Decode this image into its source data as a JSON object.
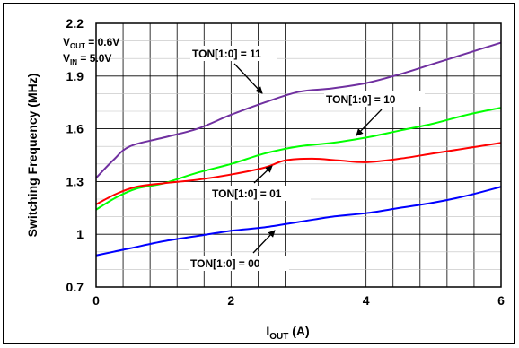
{
  "chart_data": {
    "type": "line",
    "xlabel": "I",
    "xlabel_sub": "OUT",
    "xlabel_unit": " (A)",
    "ylabel": "Switching Frequency (MHz)",
    "xlim": [
      0,
      6
    ],
    "ylim": [
      0.7,
      2.2
    ],
    "x_ticks": [
      0,
      2,
      4,
      6
    ],
    "x_tick_labels": [
      "0",
      "2",
      "4",
      "6"
    ],
    "y_ticks": [
      0.7,
      1.0,
      1.3,
      1.6,
      1.9,
      2.2
    ],
    "y_tick_labels": [
      "0.7",
      "1",
      "1.3",
      "1.6",
      "1.9",
      "2.2"
    ],
    "x_minor_step": 0.4,
    "grid": true,
    "conditions": [
      {
        "main": "V",
        "sub": "OUT",
        "rest": " = 0.6V"
      },
      {
        "main": "V",
        "sub": "IN",
        "rest": " = 5.0V"
      }
    ],
    "series": [
      {
        "name": "TON[1:0] = 11",
        "color": "#7030a0",
        "x": [
          0,
          0.25,
          0.5,
          1.0,
          1.5,
          2.0,
          2.5,
          3.0,
          3.5,
          4.0,
          4.5,
          5.0,
          5.5,
          6.0
        ],
        "y": [
          1.32,
          1.42,
          1.5,
          1.55,
          1.6,
          1.68,
          1.75,
          1.81,
          1.83,
          1.86,
          1.91,
          1.97,
          2.03,
          2.09
        ]
      },
      {
        "name": "TON[1:0] = 10",
        "color": "#00ff00",
        "x": [
          0,
          0.3,
          0.6,
          1.0,
          1.5,
          2.0,
          2.5,
          3.0,
          3.5,
          4.0,
          4.5,
          5.0,
          5.5,
          6.0
        ],
        "y": [
          1.14,
          1.21,
          1.26,
          1.29,
          1.35,
          1.4,
          1.46,
          1.5,
          1.52,
          1.55,
          1.59,
          1.63,
          1.68,
          1.72
        ]
      },
      {
        "name": "TON[1:0] = 01",
        "color": "#ff0000",
        "x": [
          0,
          0.3,
          0.6,
          1.0,
          1.5,
          2.0,
          2.5,
          2.8,
          3.2,
          3.6,
          4.0,
          4.5,
          5.0,
          5.5,
          6.0
        ],
        "y": [
          1.17,
          1.23,
          1.27,
          1.29,
          1.31,
          1.34,
          1.38,
          1.42,
          1.43,
          1.42,
          1.41,
          1.43,
          1.46,
          1.49,
          1.52
        ]
      },
      {
        "name": "TON[1:0] = 00",
        "color": "#0000ff",
        "x": [
          0,
          0.5,
          1.0,
          1.5,
          2.0,
          2.5,
          3.0,
          3.5,
          4.0,
          4.5,
          5.0,
          5.5,
          6.0
        ],
        "y": [
          0.88,
          0.92,
          0.96,
          0.99,
          1.02,
          1.04,
          1.07,
          1.1,
          1.12,
          1.15,
          1.18,
          1.22,
          1.27
        ]
      }
    ],
    "annotations": [
      {
        "text": "TON[1:0] = 11",
        "series": 0
      },
      {
        "text": "TON[1:0] = 10",
        "series": 1
      },
      {
        "text": "TON[1:0] = 01",
        "series": 2
      },
      {
        "text": "TON[1:0] = 00",
        "series": 3
      }
    ]
  }
}
